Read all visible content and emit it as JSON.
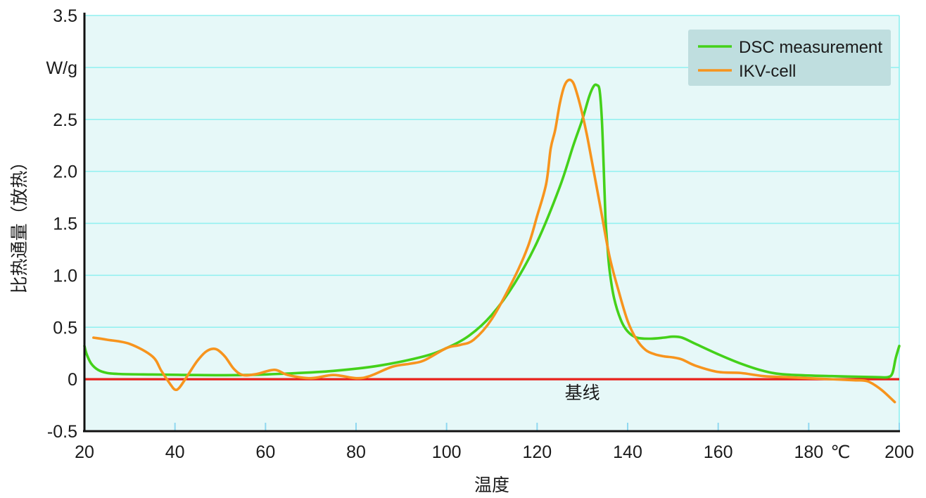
{
  "chart_data": {
    "type": "line",
    "xlabel": "温度",
    "ylabel": "比热通量（放热）",
    "y_unit_label": "W/g",
    "x_unit_label": "℃",
    "xlim": [
      20,
      200
    ],
    "ylim": [
      -0.5,
      3.5
    ],
    "x_ticks": [
      20,
      40,
      60,
      80,
      100,
      120,
      140,
      160,
      180,
      200
    ],
    "y_ticks": [
      {
        "value": 3.5,
        "label": "3.5"
      },
      {
        "value": 2.5,
        "label": "2.5"
      },
      {
        "value": 2.0,
        "label": "2.0"
      },
      {
        "value": 1.5,
        "label": "1.5"
      },
      {
        "value": 1.0,
        "label": "1.0"
      },
      {
        "value": 0.5,
        "label": "0.5"
      },
      {
        "value": 0,
        "label": "0"
      },
      {
        "value": -0.5,
        "label": "-0.5"
      }
    ],
    "grid": true,
    "legend_position": "top-right",
    "baseline": {
      "value": 0,
      "label": "基线",
      "label_x": 130,
      "label_y": -0.19,
      "color": "#e8201c"
    },
    "background_color": "#e6f8f8",
    "grid_color": "#8ff0f0",
    "legend_bg_color": "#bfdedf",
    "series": [
      {
        "name": "DSC measurement",
        "color": "#44d11a",
        "x": [
          20,
          20.5,
          21.5,
          23,
          25,
          28,
          35,
          45,
          55,
          65,
          75,
          85,
          95,
          100,
          105,
          110,
          115,
          120,
          125,
          128,
          130,
          131.5,
          132.5,
          133.2,
          133.8,
          134.3,
          134.7,
          135.1,
          135.5,
          136,
          137,
          138.5,
          140,
          142,
          145,
          148,
          150,
          152,
          155,
          160,
          165,
          170,
          175,
          185,
          195,
          197.5,
          198.5,
          199.2,
          200
        ],
        "y": [
          0.32,
          0.24,
          0.15,
          0.09,
          0.06,
          0.05,
          0.045,
          0.04,
          0.04,
          0.055,
          0.08,
          0.13,
          0.22,
          0.3,
          0.42,
          0.62,
          0.92,
          1.32,
          1.85,
          2.25,
          2.5,
          2.72,
          2.82,
          2.83,
          2.78,
          2.5,
          2.05,
          1.55,
          1.3,
          1.05,
          0.78,
          0.57,
          0.46,
          0.4,
          0.39,
          0.4,
          0.41,
          0.4,
          0.34,
          0.24,
          0.15,
          0.08,
          0.045,
          0.03,
          0.02,
          0.02,
          0.06,
          0.2,
          0.32
        ]
      },
      {
        "name": "IKV-cell",
        "color": "#f7941d",
        "x": [
          22,
          25,
          30,
          35,
          37,
          39,
          40,
          41,
          43,
          45,
          47,
          49,
          51,
          53,
          55,
          58,
          62,
          65,
          70,
          75,
          80,
          83,
          88,
          92,
          95,
          100,
          103,
          106,
          110,
          115,
          118,
          120,
          122,
          123,
          124,
          125,
          126,
          127,
          128,
          129,
          130,
          131,
          132,
          134,
          136,
          138,
          140,
          142,
          144,
          146,
          148,
          150,
          152,
          155,
          160,
          165,
          170,
          175,
          180,
          185,
          190,
          193,
          196,
          199
        ],
        "y": [
          0.4,
          0.38,
          0.34,
          0.22,
          0.08,
          -0.05,
          -0.1,
          -0.08,
          0.05,
          0.18,
          0.27,
          0.29,
          0.22,
          0.1,
          0.04,
          0.05,
          0.09,
          0.04,
          0.01,
          0.04,
          0.01,
          0.03,
          0.12,
          0.15,
          0.18,
          0.3,
          0.33,
          0.38,
          0.58,
          0.98,
          1.28,
          1.57,
          1.88,
          2.22,
          2.4,
          2.65,
          2.82,
          2.88,
          2.85,
          2.72,
          2.55,
          2.35,
          2.12,
          1.65,
          1.18,
          0.85,
          0.56,
          0.38,
          0.28,
          0.24,
          0.22,
          0.21,
          0.19,
          0.13,
          0.07,
          0.06,
          0.03,
          0.02,
          0.01,
          0.0,
          -0.01,
          -0.02,
          -0.1,
          -0.22
        ]
      }
    ]
  }
}
